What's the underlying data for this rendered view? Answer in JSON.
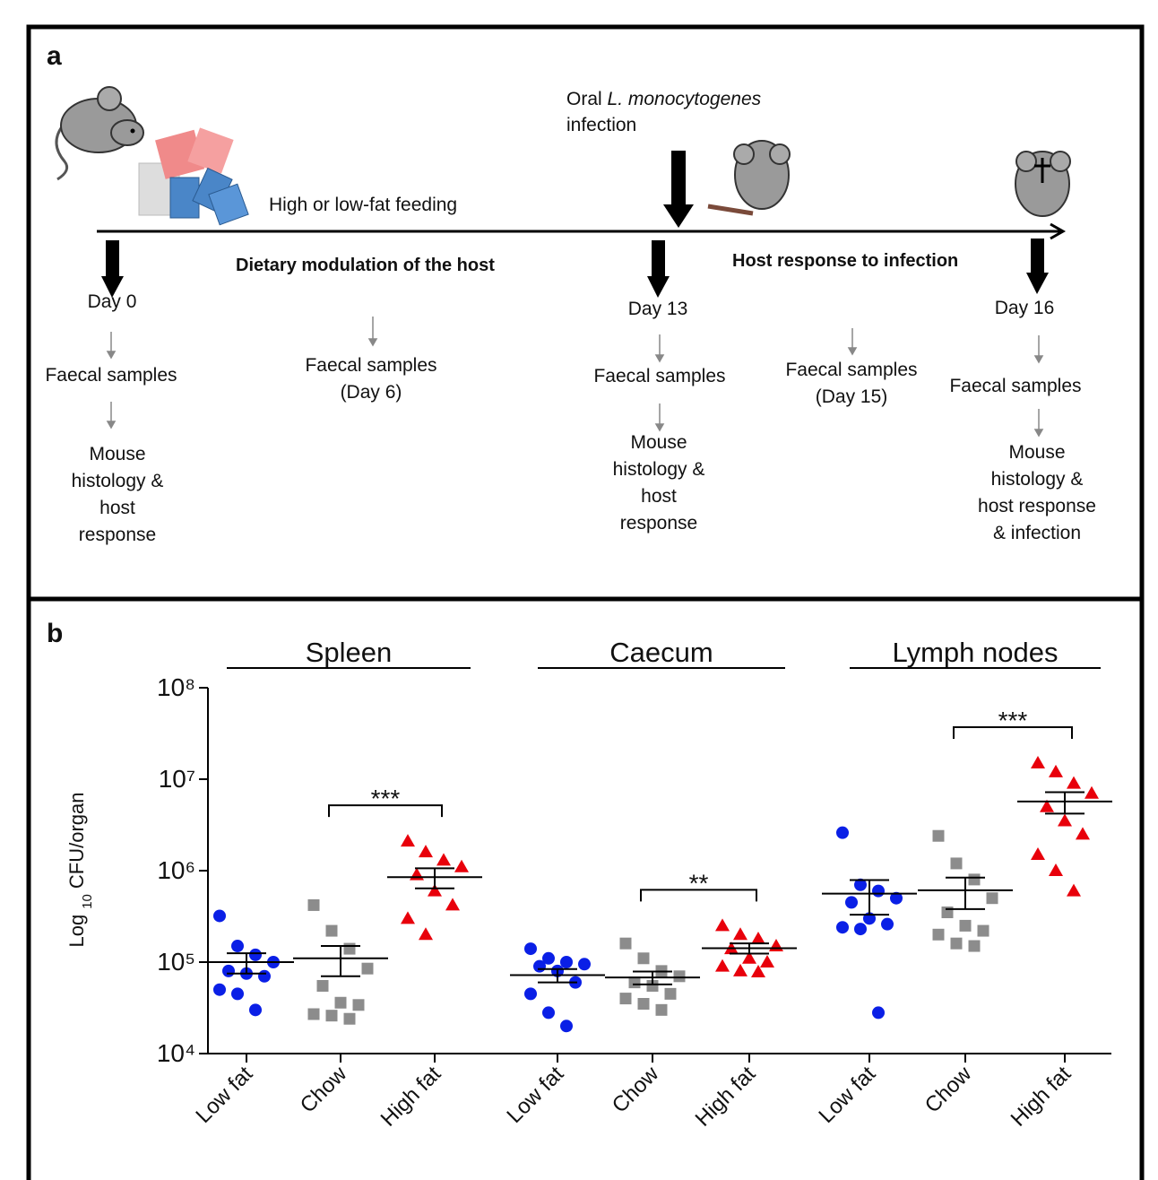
{
  "panel_a": {
    "label": "a",
    "oral_infection": {
      "prefix": "Oral",
      "species": "L. monocytogenes",
      "suffix": "infection"
    },
    "feeding": "High or low-fat feeding",
    "phase_1": "Dietary modulation of the host",
    "phase_2": "Host response to infection",
    "timepoints": [
      {
        "day": "Day 0",
        "steps": [
          [
            "Faecal samples"
          ],
          [
            "Mouse",
            "histology &",
            "host",
            "response"
          ]
        ]
      },
      {
        "day": "Day 13",
        "steps": [
          [
            "Faecal samples"
          ],
          [
            "Mouse",
            "histology &",
            "host",
            "response"
          ]
        ]
      },
      {
        "day": "Day 16",
        "steps": [
          [
            "Faecal samples"
          ],
          [
            "Mouse",
            "histology &",
            "host response",
            "& infection"
          ]
        ]
      }
    ],
    "interim_samples": [
      [
        "Faecal samples",
        "(Day 6)"
      ],
      [
        "Faecal samples",
        "(Day 15)"
      ]
    ]
  },
  "chart_data": {
    "type": "dot",
    "label": "b",
    "ylabel": [
      "Log",
      "10",
      "CFU/organ"
    ],
    "log_scale": true,
    "ylim": [
      10000,
      100000000
    ],
    "yticks": [
      {
        "value": 10000,
        "label": "10⁴"
      },
      {
        "value": 100000,
        "label": "10⁵"
      },
      {
        "value": 1000000,
        "label": "10⁶"
      },
      {
        "value": 10000000,
        "label": "10⁷"
      },
      {
        "value": 100000000,
        "label": "10⁸"
      }
    ],
    "groups": [
      "Spleen",
      "Caecum",
      "Lymph nodes"
    ],
    "categories": [
      "Low fat",
      "Chow",
      "High fat",
      "Low fat",
      "Chow",
      "High fat",
      "Low fat",
      "Chow",
      "High fat"
    ],
    "colors": [
      "#0a1fe6",
      "#8c8c8c",
      "#e8000b",
      "#0a1fe6",
      "#8c8c8c",
      "#e8000b",
      "#0a1fe6",
      "#8c8c8c",
      "#e8000b"
    ],
    "markers": [
      "circle",
      "square",
      "triangle",
      "circle",
      "square",
      "triangle",
      "circle",
      "square",
      "triangle"
    ],
    "points": [
      [
        320000,
        150000,
        120000,
        100000,
        80000,
        75000,
        70000,
        50000,
        45000,
        30000
      ],
      [
        420000,
        220000,
        140000,
        85000,
        55000,
        36000,
        34000,
        27000,
        26000,
        24000
      ],
      [
        2100000,
        1600000,
        1300000,
        1100000,
        900000,
        600000,
        420000,
        300000,
        200000
      ],
      [
        140000,
        110000,
        100000,
        95000,
        90000,
        80000,
        60000,
        45000,
        28000,
        20000
      ],
      [
        160000,
        110000,
        80000,
        70000,
        60000,
        55000,
        45000,
        40000,
        35000,
        30000
      ],
      [
        250000,
        200000,
        180000,
        150000,
        140000,
        110000,
        100000,
        90000,
        80000,
        78000
      ],
      [
        2600000,
        700000,
        600000,
        500000,
        450000,
        300000,
        260000,
        240000,
        230000,
        28000
      ],
      [
        2400000,
        1200000,
        800000,
        500000,
        350000,
        250000,
        220000,
        200000,
        160000,
        150000
      ],
      [
        15000000,
        12000000,
        9000000,
        7000000,
        5000000,
        3500000,
        2500000,
        1500000,
        1000000,
        600000
      ]
    ],
    "means": [
      100000,
      110000,
      850000,
      72000,
      68000,
      142000,
      560000,
      610000,
      5700000
    ],
    "sem": [
      25000,
      40000,
      210000,
      12000,
      11000,
      18000,
      230000,
      230000,
      1500000
    ],
    "comparisons": [
      {
        "from": 1,
        "to": 2,
        "label": "***"
      },
      {
        "from": 4,
        "to": 5,
        "label": "**"
      },
      {
        "from": 7,
        "to": 8,
        "label": "***"
      }
    ]
  }
}
